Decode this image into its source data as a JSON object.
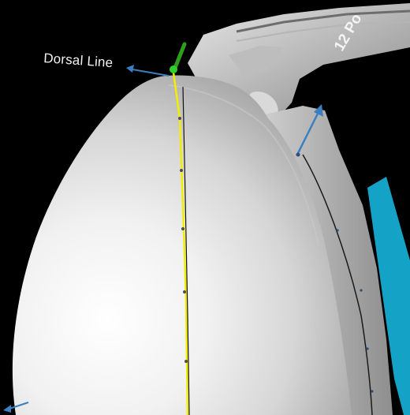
{
  "viewer": {
    "dorsal_line_label": "Dorsal Line",
    "points_label": "12 Po",
    "colors": {
      "background": "#000000",
      "surface_light": "#f4f4f4",
      "surface_shadow": "#9a9a9a",
      "dorsal_line": "#f2ee00",
      "handle_arrow": "#3a7fbf",
      "direction_arrow": "#14a3c7",
      "start_marker": "#2fd12f"
    },
    "icons": [
      "handle-arrow-icon",
      "direction-arrow-icon",
      "start-point-icon"
    ]
  }
}
